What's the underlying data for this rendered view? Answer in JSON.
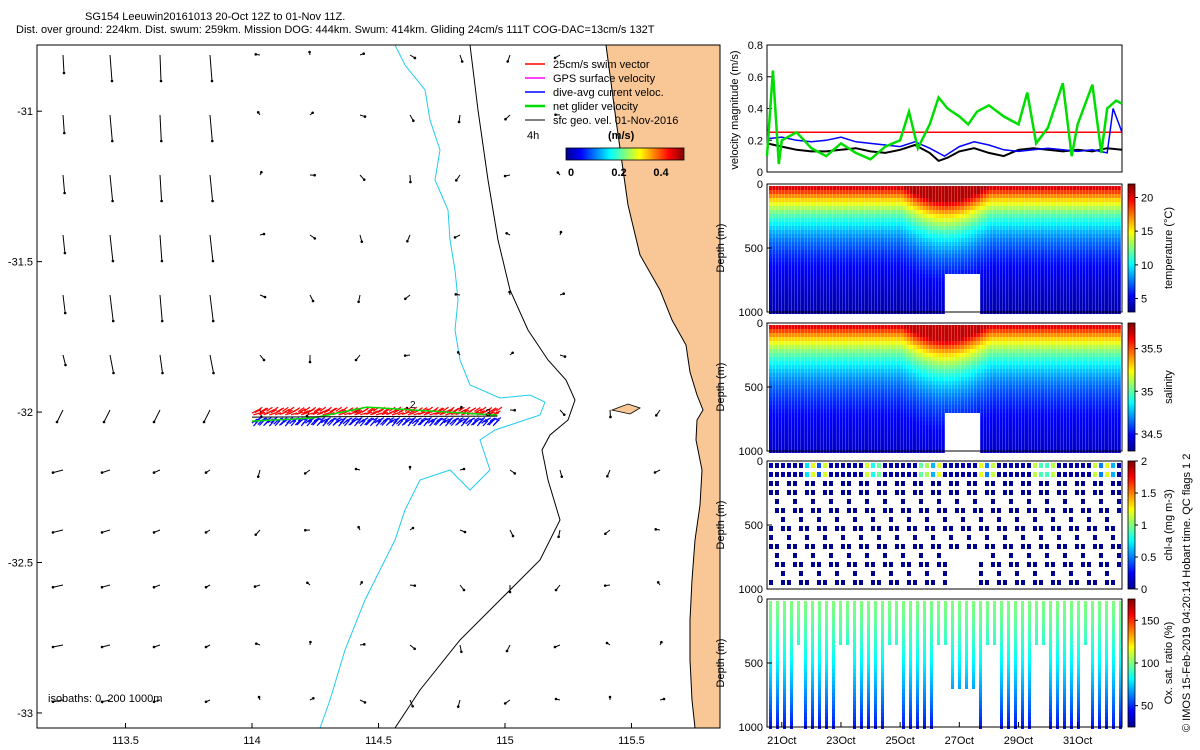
{
  "header": {
    "line1": "SG154 Leeuwin20161013 20-Oct 12Z to 01-Nov 11Z.",
    "line2": "Dist. over ground: 224km. Dist. swum: 259km. Mission DOG: 444km. Swum: 414km. Gliding 24cm/s 111T COG-DAC=13cm/s 132T"
  },
  "footer_note": "© IMOS 15-Feb-2019 04:20:14 Hobart time. QC flags 1 2",
  "colors": {
    "land": "#f9c796",
    "coast": "#000000",
    "isobath_200": "#000000",
    "isobath_1000": "#22ccee",
    "swim": "#ff0000",
    "gps": "#ff00ff",
    "dac": "#0000ff",
    "net": "#00dd00",
    "sfc": "#000000"
  },
  "chart_data": [
    {
      "type": "map",
      "title": "",
      "xlim": [
        113.15,
        115.85
      ],
      "ylim": [
        -33.05,
        -30.78
      ],
      "xticks": [
        113.5,
        114,
        114.5,
        115,
        115.5
      ],
      "xtick_labels": [
        "113.5",
        "114",
        "114.5",
        "115",
        "115.5"
      ],
      "yticks": [
        -31,
        -31.5,
        -32,
        -32.5,
        -33
      ],
      "ytick_labels": [
        "-31",
        "-31.5",
        "-32",
        "-32.5",
        "-33"
      ],
      "legend": [
        {
          "label": "25cm/s swim vector",
          "color": "#ff0000"
        },
        {
          "label": "GPS surface velocity",
          "color": "#ff00ff"
        },
        {
          "label": "dive-avg current veloc.",
          "color": "#0000ff"
        },
        {
          "label": "net glider velocity",
          "color": "#00dd00"
        },
        {
          "label": "sfc geo. vel. 01-Nov-2016",
          "color": "#000000"
        }
      ],
      "legend_extra": "4h",
      "colorbar_title": "(m/s)",
      "colorbar_ticks": [
        "0",
        "0.2",
        "0.4"
      ],
      "isobath_label": "isobaths: 0,  200  1000m",
      "track_labels": [
        "2",
        "3"
      ],
      "track_lat": -32.01,
      "track_lon_range": [
        114.0,
        114.97
      ]
    },
    {
      "type": "line",
      "ylabel": "velocity magnitude (m/s)",
      "ylim": [
        0,
        0.8
      ],
      "yticks": [
        0,
        0.2,
        0.4,
        0.6,
        0.8
      ],
      "ytick_labels": [
        "0",
        "0.2",
        "0.4",
        "0.6",
        "0.8"
      ],
      "xlim": [
        20.5,
        32.5
      ],
      "series": [
        {
          "name": "25cm/s swim reference",
          "color": "#ff0000",
          "x": [
            20.5,
            32.5
          ],
          "values": [
            0.25,
            0.25
          ]
        },
        {
          "name": "sfc geo. vel.",
          "color": "#000000",
          "x": [
            20.5,
            21,
            21.5,
            22,
            22.5,
            23,
            23.5,
            24,
            24.5,
            25,
            25.5,
            26,
            26.3,
            26.6,
            27,
            27.5,
            28,
            28.5,
            29,
            29.5,
            30,
            30.5,
            31,
            31.5,
            32,
            32.5
          ],
          "values": [
            0.18,
            0.16,
            0.14,
            0.13,
            0.13,
            0.14,
            0.15,
            0.13,
            0.12,
            0.14,
            0.17,
            0.12,
            0.07,
            0.09,
            0.13,
            0.15,
            0.12,
            0.1,
            0.14,
            0.15,
            0.14,
            0.13,
            0.14,
            0.13,
            0.15,
            0.14
          ]
        },
        {
          "name": "dive-avg current veloc.",
          "color": "#0000ff",
          "x": [
            20.5,
            21,
            21.5,
            22,
            22.5,
            23,
            23.5,
            24,
            24.5,
            25,
            25.5,
            26,
            26.5,
            27,
            27.5,
            28,
            28.5,
            29,
            29.5,
            30,
            30.5,
            31,
            31.5,
            32,
            32.2,
            32.5
          ],
          "values": [
            0.21,
            0.22,
            0.2,
            0.19,
            0.2,
            0.22,
            0.19,
            0.18,
            0.17,
            0.16,
            0.19,
            0.15,
            0.1,
            0.16,
            0.19,
            0.17,
            0.14,
            0.13,
            0.14,
            0.15,
            0.14,
            0.13,
            0.14,
            0.12,
            0.4,
            0.25
          ]
        },
        {
          "name": "net glider velocity",
          "color": "#00dd00",
          "x": [
            20.5,
            20.7,
            20.9,
            21.0,
            21.5,
            22,
            22.5,
            23,
            23.5,
            24,
            24.5,
            25,
            25.3,
            25.6,
            26,
            26.3,
            26.6,
            27,
            27.3,
            27.6,
            28,
            28.5,
            29,
            29.3,
            29.6,
            30,
            30.5,
            30.8,
            31,
            31.5,
            31.8,
            32,
            32.3,
            32.5
          ],
          "values": [
            0.1,
            0.64,
            0.05,
            0.2,
            0.25,
            0.15,
            0.1,
            0.18,
            0.12,
            0.08,
            0.16,
            0.2,
            0.38,
            0.15,
            0.3,
            0.47,
            0.4,
            0.35,
            0.3,
            0.38,
            0.42,
            0.35,
            0.3,
            0.5,
            0.18,
            0.28,
            0.56,
            0.1,
            0.3,
            0.55,
            0.12,
            0.4,
            0.45,
            0.43
          ]
        }
      ]
    },
    {
      "type": "heatmap",
      "variable": "temperature",
      "ylabel": "Depth (m)",
      "cbar_label": "temperature (°C)",
      "yticks": [
        "0",
        "500",
        "1000"
      ],
      "cbar_range": [
        3,
        22
      ],
      "cbar_ticks": [
        "5",
        "10",
        "15",
        "20"
      ],
      "surface_value": 21,
      "deep_value": 3
    },
    {
      "type": "heatmap",
      "variable": "salinity",
      "ylabel": "Depth (m)",
      "cbar_label": "salinity",
      "yticks": [
        "0",
        "500",
        "1000"
      ],
      "cbar_range": [
        34.3,
        35.8
      ],
      "cbar_ticks": [
        "34.5",
        "35",
        "35.5"
      ],
      "surface_value": 35.7,
      "deep_value": 34.35
    },
    {
      "type": "heatmap",
      "variable": "chl-a",
      "ylabel": "Depth (m)",
      "cbar_label": "chl-a (mg m-3)",
      "yticks": [
        "0",
        "500",
        "1000"
      ],
      "cbar_range": [
        0,
        2
      ],
      "cbar_ticks": [
        "0",
        "0.5",
        "1",
        "1.5",
        "2"
      ],
      "surface_value": 1.2,
      "deep_value": 0
    },
    {
      "type": "heatmap",
      "variable": "oxygen",
      "ylabel": "Depth (m)",
      "cbar_label": "Ox. sat. ratio (%)",
      "yticks": [
        "0",
        "500",
        "1000"
      ],
      "cbar_range": [
        25,
        175
      ],
      "cbar_ticks": [
        "50",
        "100",
        "150"
      ],
      "surface_value": 100,
      "deep_value": 45
    }
  ],
  "time_axis": {
    "xlim": [
      20.5,
      32.5
    ],
    "ticks": [
      21,
      23,
      25,
      27,
      29,
      31
    ],
    "tick_labels": [
      "21Oct",
      "23Oct",
      "25Oct",
      "27Oct",
      "29Oct",
      "31Oct"
    ]
  }
}
